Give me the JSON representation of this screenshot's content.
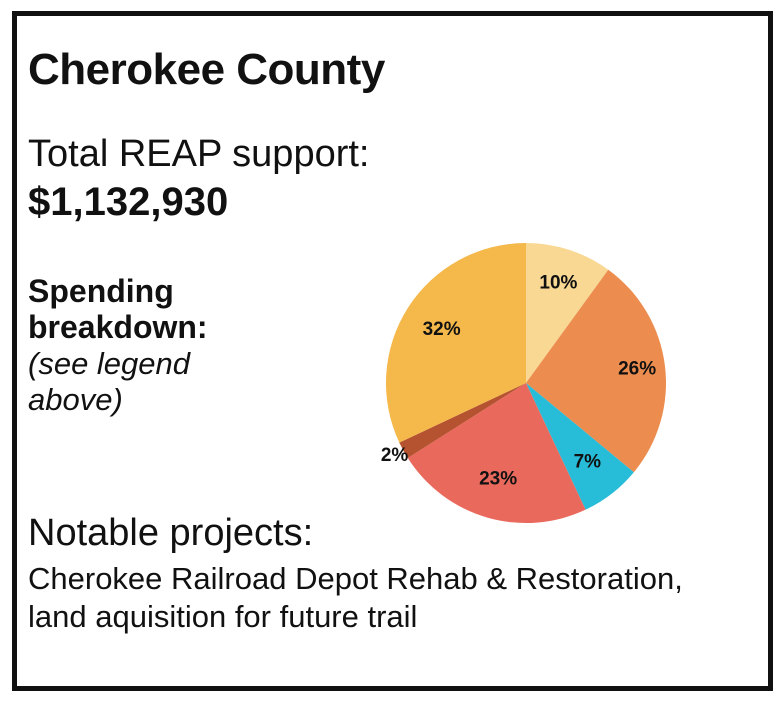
{
  "title": "Cherokee County",
  "support": {
    "label": "Total REAP support:",
    "value": "$1,132,930"
  },
  "spending": {
    "title": "Spending breakdown:",
    "note": "(see legend above)"
  },
  "notable": {
    "title": "Notable projects:",
    "text": "Cherokee Railroad Depot Rehab & Restoration, land aquisition for future trail"
  },
  "chart_data": {
    "type": "pie",
    "slices": [
      {
        "value": 10,
        "label": "10%",
        "color": "#F8D893"
      },
      {
        "value": 26,
        "label": "26%",
        "color": "#EC8C4E"
      },
      {
        "value": 7,
        "label": "7%",
        "color": "#27BCD8"
      },
      {
        "value": 23,
        "label": "23%",
        "color": "#EA695D"
      },
      {
        "value": 2,
        "label": "2%",
        "color": "#B5522F"
      },
      {
        "value": 32,
        "label": "32%",
        "color": "#F4B84B"
      }
    ]
  }
}
